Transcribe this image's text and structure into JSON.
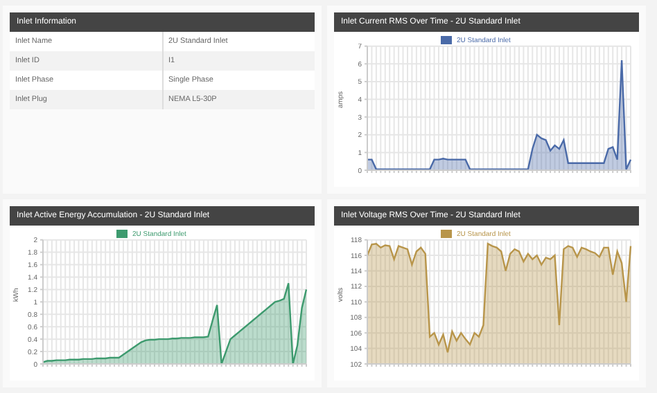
{
  "chart_data": [
    {
      "type": "other",
      "title": "Inlet Information",
      "annotations": [
        "Inlet Name",
        "2U Standard Inlet",
        "Inlet ID",
        "I1",
        "Inlet Phase",
        "Single Phase",
        "Inlet Plug",
        "NEMA L5-30P"
      ]
    },
    {
      "type": "area",
      "title": "Inlet Current RMS Over Time - 2U Standard Inlet",
      "ylabel": "amps",
      "categories": [
        null,
        null,
        null,
        null,
        null,
        null,
        null,
        null,
        null,
        null,
        null,
        null,
        null,
        null,
        null,
        null,
        null,
        null,
        null,
        null,
        null,
        null,
        null,
        null,
        null,
        null,
        null,
        null,
        null,
        null,
        null,
        null,
        null,
        null,
        null,
        null,
        null,
        null,
        null,
        null,
        null,
        null,
        null,
        null,
        null,
        null,
        null,
        null,
        null,
        null,
        null,
        null,
        null,
        null,
        null,
        null,
        null,
        null,
        null,
        null
      ],
      "ylim": [
        0,
        7
      ],
      "yticks": [
        0,
        1,
        2,
        3,
        4,
        5,
        6,
        7
      ],
      "grid": true,
      "legend": "top",
      "marker": "none",
      "series": [
        {
          "name": "2U Standard Inlet",
          "color": "#4a6aa8",
          "values": [
            0.6,
            0.6,
            0.05,
            0.05,
            0.05,
            0.05,
            0.05,
            0.05,
            0.05,
            0.05,
            0.05,
            0.05,
            0.05,
            0.05,
            0.05,
            0.6,
            0.6,
            0.65,
            0.6,
            0.6,
            0.6,
            0.6,
            0.6,
            0.05,
            0.05,
            0.05,
            0.05,
            0.05,
            0.05,
            0.05,
            0.05,
            0.05,
            0.05,
            0.05,
            0.05,
            0.05,
            0.05,
            1.2,
            2.0,
            1.8,
            1.7,
            1.1,
            1.4,
            1.2,
            1.7,
            0.4,
            0.4,
            0.4,
            0.4,
            0.4,
            0.4,
            0.4,
            0.4,
            0.4,
            1.2,
            1.3,
            0.6,
            6.2,
            0.05,
            0.6
          ]
        }
      ]
    },
    {
      "type": "area",
      "title": "Inlet Active Energy Accumulation - 2U Standard Inlet",
      "ylabel": "kWh",
      "categories": [
        null,
        null,
        null,
        null,
        null,
        null,
        null,
        null,
        null,
        null,
        null,
        null,
        null,
        null,
        null,
        null,
        null,
        null,
        null,
        null,
        null,
        null,
        null,
        null,
        null,
        null,
        null,
        null,
        null,
        null,
        null,
        null,
        null,
        null,
        null,
        null,
        null,
        null,
        null,
        null,
        null,
        null,
        null,
        null,
        null,
        null,
        null,
        null,
        null,
        null,
        null,
        null,
        null,
        null,
        null,
        null,
        null,
        null,
        null,
        null
      ],
      "ylim": [
        0,
        2
      ],
      "yticks": [
        0,
        0.2,
        0.4,
        0.6,
        0.8,
        1,
        1.2,
        1.4,
        1.6,
        1.8,
        2
      ],
      "grid": true,
      "legend": "top",
      "marker": "none",
      "series": [
        {
          "name": "2U Standard Inlet",
          "color": "#3d9a6e",
          "values": [
            0.03,
            0.05,
            0.05,
            0.06,
            0.06,
            0.06,
            0.07,
            0.07,
            0.07,
            0.08,
            0.08,
            0.08,
            0.09,
            0.09,
            0.09,
            0.1,
            0.1,
            0.1,
            0.15,
            0.2,
            0.25,
            0.3,
            0.35,
            0.38,
            0.39,
            0.39,
            0.4,
            0.4,
            0.4,
            0.41,
            0.41,
            0.42,
            0.42,
            0.42,
            0.43,
            0.43,
            0.43,
            0.44,
            0.7,
            0.95,
            0,
            0.2,
            0.4,
            0.46,
            0.52,
            0.58,
            0.64,
            0.7,
            0.76,
            0.82,
            0.88,
            0.94,
            1.0,
            1.02,
            1.05,
            1.3,
            0,
            0.3,
            0.9,
            1.2
          ]
        }
      ]
    },
    {
      "type": "area",
      "title": "Inlet Voltage RMS Over Time - 2U Standard Inlet",
      "ylabel": "volts",
      "categories": [
        null,
        null,
        null,
        null,
        null,
        null,
        null,
        null,
        null,
        null,
        null,
        null,
        null,
        null,
        null,
        null,
        null,
        null,
        null,
        null,
        null,
        null,
        null,
        null,
        null,
        null,
        null,
        null,
        null,
        null,
        null,
        null,
        null,
        null,
        null,
        null,
        null,
        null,
        null,
        null,
        null,
        null,
        null,
        null,
        null,
        null,
        null,
        null,
        null,
        null,
        null,
        null,
        null,
        null,
        null,
        null,
        null,
        null,
        null,
        null
      ],
      "ylim": [
        102,
        118
      ],
      "yticks": [
        102,
        104,
        106,
        108,
        110,
        112,
        114,
        116,
        118
      ],
      "grid": true,
      "legend": "top",
      "marker": "none",
      "series": [
        {
          "name": "2U Standard Inlet",
          "color": "#b8954a",
          "values": [
            116,
            117.4,
            117.5,
            117,
            117.3,
            117.2,
            115.5,
            117.2,
            117,
            116.8,
            114.8,
            116.5,
            117,
            116.2,
            105.5,
            106,
            104.5,
            105.8,
            103.5,
            106.2,
            105,
            106,
            105.2,
            104.5,
            106,
            105.5,
            107,
            117.5,
            117.2,
            117,
            116.5,
            114,
            116.2,
            116.8,
            116.5,
            115.2,
            116.2,
            115.5,
            116,
            114.8,
            115.7,
            115.5,
            116,
            107,
            116.8,
            117.2,
            117,
            115.8,
            117,
            116.8,
            116.5,
            116.3,
            115.8,
            117,
            117,
            113.5,
            116.5,
            115,
            110,
            117.2
          ]
        }
      ]
    }
  ]
}
